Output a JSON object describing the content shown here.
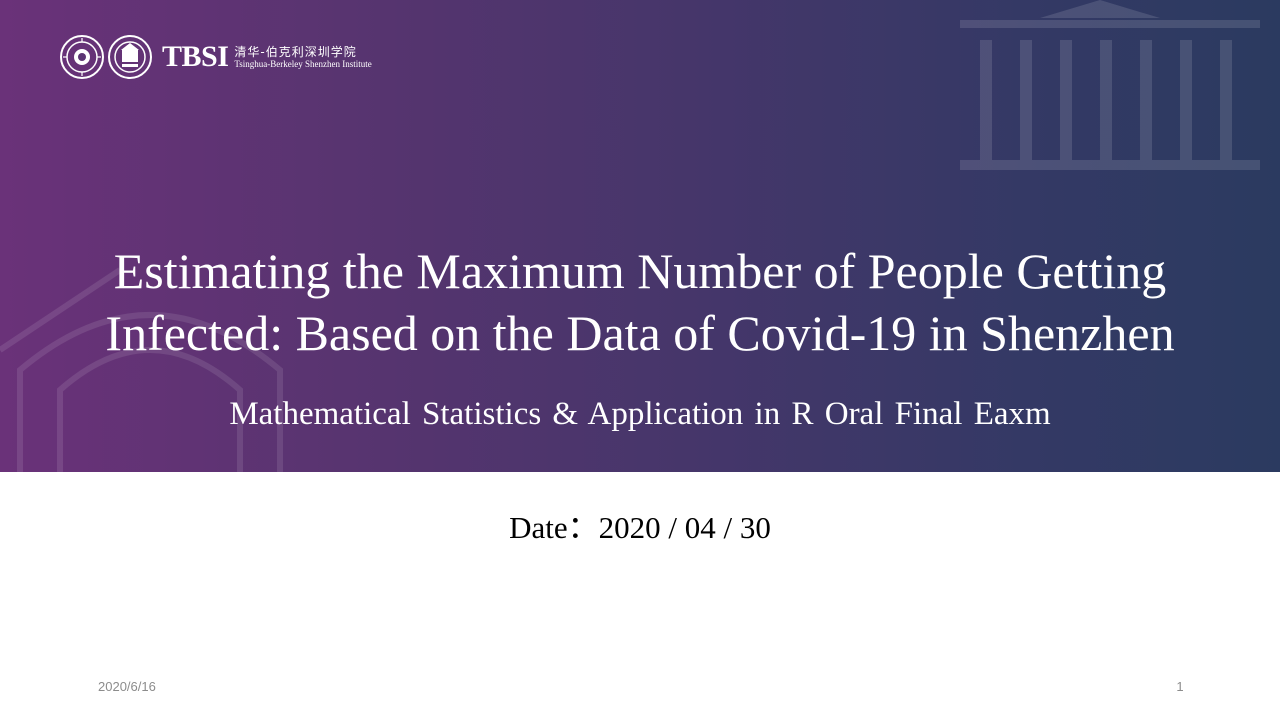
{
  "header": {
    "logo_mark": "TBSI",
    "logo_cn": "清华-伯克利深圳学院",
    "logo_en": "Tsinghua-Berkeley Shenzhen Institute"
  },
  "slide": {
    "title_line1": "Estimating the Maximum Number of People Getting",
    "title_line2": "Infected: Based on the Data of Covid-19 in Shenzhen",
    "subtitle": "Mathematical Statistics & Application in R Oral Final Eaxm",
    "date": "Date：2020 / 04 / 30"
  },
  "footer": {
    "date": "2020/6/16",
    "page_number": "1"
  },
  "colors": {
    "banner_left": "#6a3279",
    "banner_right": "#2b3a60",
    "text_light": "#ffffff",
    "text_dark": "#000000",
    "footer_text": "#8c8c8c"
  },
  "icons": [
    "tsinghua-seal-icon",
    "berkeley-seal-icon"
  ]
}
